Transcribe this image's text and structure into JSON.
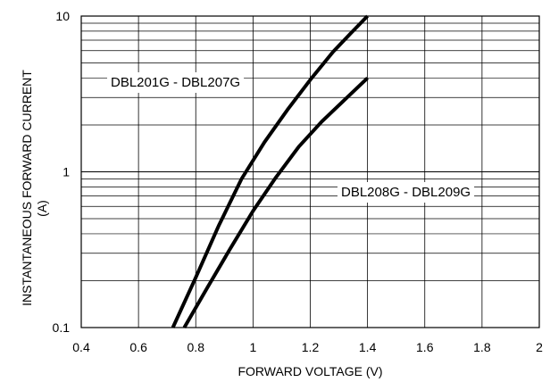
{
  "chart_data": {
    "type": "line",
    "xlabel": "FORWARD VOLTAGE (V)",
    "ylabel_line1": "INSTANTANEOUS FORWARD CURRENT",
    "ylabel_line2": "(A)",
    "xlim": [
      0.4,
      2.0
    ],
    "ylim": [
      0.1,
      10
    ],
    "yscale": "log",
    "grid": true,
    "x_ticks": [
      0.4,
      0.6,
      0.8,
      1.0,
      1.2,
      1.4,
      1.6,
      1.8,
      2.0
    ],
    "x_tick_labels": [
      "0.4",
      "0.6",
      "0.8",
      "1",
      "1.2",
      "1.4",
      "1.6",
      "1.8",
      "2"
    ],
    "y_ticks": [
      0.1,
      1,
      10
    ],
    "y_tick_labels": [
      "0.1",
      "1",
      "10"
    ],
    "series": [
      {
        "name": "DBL201G - DBL207G",
        "x": [
          0.72,
          0.8,
          0.88,
          0.96,
          1.04,
          1.12,
          1.2,
          1.28,
          1.34,
          1.4
        ],
        "y": [
          0.1,
          0.21,
          0.45,
          0.9,
          1.55,
          2.5,
          3.9,
          5.9,
          7.7,
          10
        ]
      },
      {
        "name": "DBL208G - DBL209G",
        "x": [
          0.76,
          0.84,
          0.92,
          1.0,
          1.08,
          1.16,
          1.24,
          1.32,
          1.4
        ],
        "y": [
          0.1,
          0.18,
          0.32,
          0.56,
          0.92,
          1.45,
          2.1,
          2.9,
          4.0
        ]
      }
    ]
  }
}
